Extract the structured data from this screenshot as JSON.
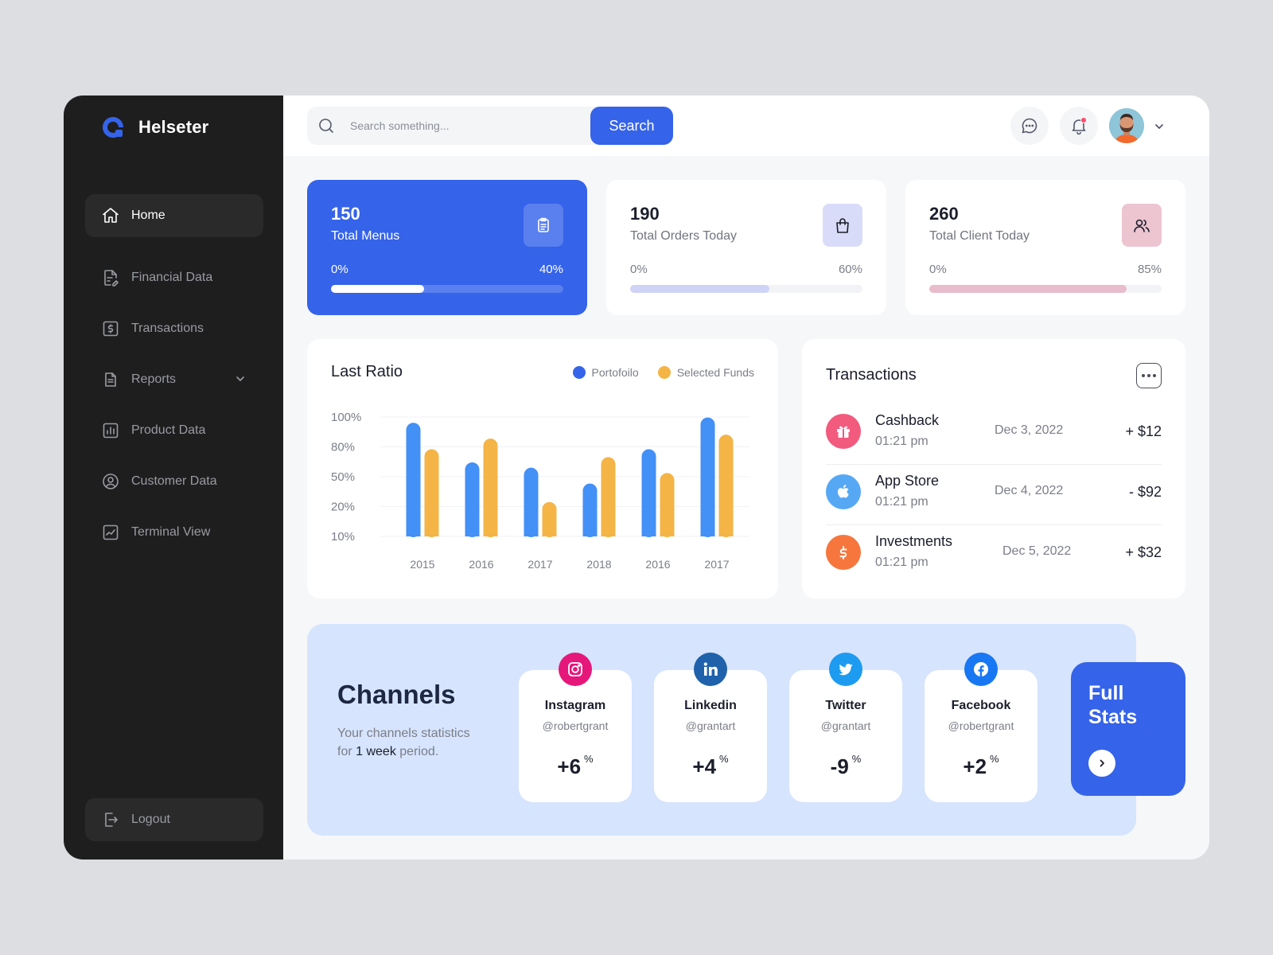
{
  "app": {
    "name": "Helseter"
  },
  "sidebar": {
    "items": [
      {
        "label": "Home",
        "icon": "home-icon",
        "active": true
      },
      {
        "label": "Financial Data",
        "icon": "document-edit-icon"
      },
      {
        "label": "Transactions",
        "icon": "dollar-square-icon"
      },
      {
        "label": "Reports",
        "icon": "report-icon",
        "has_dropdown": true
      },
      {
        "label": "Product Data",
        "icon": "bar-chart-icon"
      },
      {
        "label": "Customer Data",
        "icon": "user-circle-icon"
      },
      {
        "label": "Terminal View",
        "icon": "trend-chart-icon"
      }
    ],
    "logout_label": "Logout"
  },
  "header": {
    "search_placeholder": "Search something...",
    "search_button": "Search"
  },
  "stats": [
    {
      "value": "150",
      "label": "Total Menus",
      "min": "0%",
      "max": "40%",
      "progress": 0.4,
      "icon": "clipboard-icon"
    },
    {
      "value": "190",
      "label": "Total Orders Today",
      "min": "0%",
      "max": "60%",
      "progress": 0.6,
      "icon": "shopping-bag-icon"
    },
    {
      "value": "260",
      "label": "Total Client Today",
      "min": "0%",
      "max": "85%",
      "progress": 0.85,
      "icon": "users-icon"
    }
  ],
  "colors": {
    "primary": "#3563e9",
    "portfolio": "#4390f7",
    "selected_funds": "#f4b446",
    "bag_tint": "#d9dcf8",
    "users_tint": "#ecc5d1",
    "orders_bar": "#cfd3f5",
    "clients_bar": "#e8bccb",
    "channels_bg": "#d6e4fd"
  },
  "chart_data": {
    "type": "bar",
    "title": "Last Ratio",
    "categories": [
      "2015",
      "2016",
      "2017",
      "2018",
      "2016",
      "2017"
    ],
    "y_ticks": [
      "100%",
      "80%",
      "50%",
      "20%",
      "10%"
    ],
    "series": [
      {
        "name": "Portofoilo",
        "values": [
          0.86,
          0.56,
          0.52,
          0.4,
          0.66,
          0.9
        ]
      },
      {
        "name": "Selected Funds",
        "values": [
          0.66,
          0.74,
          0.26,
          0.6,
          0.48,
          0.77
        ]
      }
    ],
    "legend": "top-right",
    "grid": true
  },
  "transactions": {
    "title": "Transactions",
    "items": [
      {
        "name": "Cashback",
        "time": "01:21 pm",
        "date": "Dec 3, 2022",
        "amount": "+ $12",
        "icon": "gift-icon",
        "color": "#f25a7e"
      },
      {
        "name": "App Store",
        "time": "01:21 pm",
        "date": "Dec 4, 2022",
        "amount": "- $92",
        "icon": "apple-icon",
        "color": "#56a8f5"
      },
      {
        "name": "Investments",
        "time": "01:21 pm",
        "date": "Dec 5, 2022",
        "amount": "+ $32",
        "icon": "dollar-icon",
        "color": "#f7763d"
      }
    ]
  },
  "channels": {
    "title": "Channels",
    "subtitle_pre": "Your channels statistics for ",
    "subtitle_bold": "1 week",
    "subtitle_post": " period.",
    "items": [
      {
        "name": "Instagram",
        "handle": "@robertgrant",
        "value": "+6",
        "unit": "%",
        "icon": "instagram-icon",
        "color": "#e6177a"
      },
      {
        "name": "Linkedin",
        "handle": "@grantart",
        "value": "+4",
        "unit": "%",
        "icon": "linkedin-icon",
        "color": "#1f62ab"
      },
      {
        "name": "Twitter",
        "handle": "@grantart",
        "value": "-9",
        "unit": "%",
        "icon": "twitter-icon",
        "color": "#1d9bf0"
      },
      {
        "name": "Facebook",
        "handle": "@robertgrant",
        "value": "+2",
        "unit": "%",
        "icon": "facebook-icon",
        "color": "#1877f2"
      }
    ],
    "full_stats_label": "Full Stats"
  }
}
